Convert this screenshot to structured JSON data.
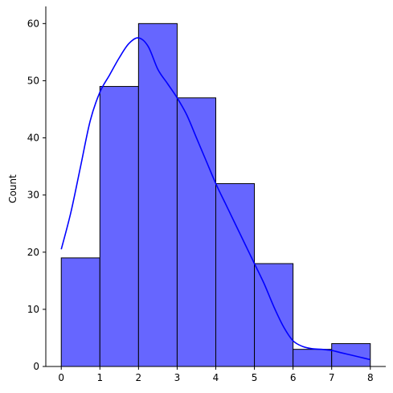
{
  "chart_data": {
    "type": "bar",
    "subtype": "histogram-with-kde",
    "title": "",
    "xlabel": "",
    "ylabel": "Count",
    "xlim": [
      -0.4,
      8.4
    ],
    "ylim": [
      0,
      63
    ],
    "x_ticks": [
      "0",
      "1",
      "2",
      "3",
      "4",
      "5",
      "6",
      "7",
      "8"
    ],
    "y_ticks": [
      "0",
      "10",
      "20",
      "30",
      "40",
      "50",
      "60"
    ],
    "bins": [
      {
        "start": 0,
        "end": 1,
        "count": 19
      },
      {
        "start": 1,
        "end": 2,
        "count": 49
      },
      {
        "start": 2,
        "end": 3,
        "count": 60
      },
      {
        "start": 3,
        "end": 4,
        "count": 47
      },
      {
        "start": 4,
        "end": 5,
        "count": 32
      },
      {
        "start": 5,
        "end": 6,
        "count": 18
      },
      {
        "start": 6,
        "end": 7,
        "count": 3
      },
      {
        "start": 7,
        "end": 8,
        "count": 4
      }
    ],
    "kde": {
      "x": [
        0,
        0.25,
        0.5,
        0.75,
        1,
        1.25,
        1.5,
        1.75,
        2,
        2.25,
        2.5,
        2.75,
        3,
        3.25,
        3.5,
        3.75,
        4,
        4.25,
        4.5,
        4.75,
        5,
        5.25,
        5.5,
        5.75,
        6,
        6.25,
        6.5,
        6.75,
        7,
        7.25,
        7.5,
        7.75,
        8
      ],
      "y": [
        20.5,
        27,
        35,
        43,
        48,
        51,
        54,
        56.5,
        57.5,
        56,
        52,
        49.5,
        47,
        44,
        40,
        36,
        32,
        28.5,
        25,
        21.5,
        18,
        14.5,
        10.5,
        7,
        4.5,
        3.5,
        3.1,
        3.0,
        2.8,
        2.4,
        2.0,
        1.6,
        1.2
      ]
    },
    "grid": false,
    "legend": false,
    "colors": {
      "bar_fill": "#6666ff",
      "bar_edge": "#000000",
      "kde_line": "#0000ff",
      "axis": "#000000"
    }
  }
}
